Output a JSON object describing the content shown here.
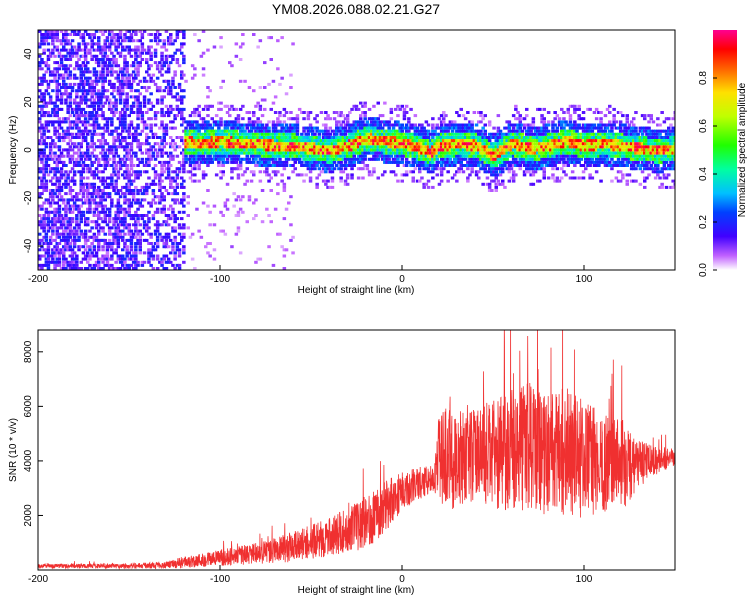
{
  "title": "YM08.2026.088.02.21.G27",
  "colors": {
    "snr_line": "#f03030",
    "track_core": "#ff3000",
    "background": "#ffffff"
  },
  "chart_data": [
    {
      "type": "heatmap",
      "name": "spectrogram",
      "xlabel": "Height of straight line (km)",
      "ylabel": "Frequency (Hz)",
      "xlim": [
        -200,
        150
      ],
      "ylim": [
        -50,
        50
      ],
      "xticks": [
        -200,
        -100,
        0,
        100
      ],
      "yticks": [
        -40,
        -20,
        0,
        20,
        40
      ],
      "track_center_hz": [
        [
          -125,
          3
        ],
        [
          -110,
          2
        ],
        [
          -100,
          3
        ],
        [
          -90,
          2
        ],
        [
          -80,
          2
        ],
        [
          -70,
          1
        ],
        [
          -60,
          1
        ],
        [
          -50,
          0
        ],
        [
          -40,
          -1
        ],
        [
          -30,
          1
        ],
        [
          -20,
          4
        ],
        [
          -10,
          3
        ],
        [
          0,
          2
        ],
        [
          10,
          0
        ],
        [
          15,
          -2
        ],
        [
          20,
          1
        ],
        [
          30,
          2
        ],
        [
          40,
          1
        ],
        [
          50,
          -3
        ],
        [
          60,
          2
        ],
        [
          70,
          0
        ],
        [
          80,
          1
        ],
        [
          90,
          3
        ],
        [
          100,
          1
        ],
        [
          110,
          2
        ],
        [
          120,
          1
        ],
        [
          130,
          0
        ],
        [
          140,
          -1
        ],
        [
          150,
          0
        ]
      ],
      "colorbar": {
        "label": "Normalized spectral amplitude",
        "range": [
          0,
          1
        ],
        "ticks": [
          0.0,
          0.2,
          0.4,
          0.6,
          0.8
        ],
        "tick_labels": [
          "0.0",
          "0.2",
          "0.4",
          "0.6",
          "0.8"
        ]
      }
    },
    {
      "type": "line",
      "name": "snr",
      "xlabel": "Height of straight line (km)",
      "ylabel": "SNR (10 * v/v)",
      "xlim": [
        -200,
        150
      ],
      "ylim": [
        0,
        8800
      ],
      "xticks": [
        -200,
        -100,
        0,
        100
      ],
      "yticks": [
        2000,
        4000,
        6000,
        8000
      ],
      "envelope_x": [
        -200,
        -150,
        -130,
        -120,
        -100,
        -80,
        -60,
        -40,
        -25,
        -15,
        -5,
        0,
        10,
        18,
        20,
        22,
        30,
        40,
        50,
        60,
        70,
        80,
        90,
        100,
        110,
        120,
        125,
        130,
        140,
        150
      ],
      "envelope_mean": [
        150,
        150,
        180,
        280,
        450,
        600,
        850,
        1200,
        1600,
        2000,
        2600,
        2900,
        3200,
        3400,
        3900,
        4200,
        4000,
        4300,
        4200,
        4400,
        4500,
        4300,
        4400,
        4100,
        3900,
        4000,
        3700,
        3900,
        4000,
        4200
      ],
      "envelope_amp": [
        80,
        100,
        120,
        220,
        300,
        400,
        550,
        700,
        900,
        1000,
        900,
        700,
        600,
        500,
        1600,
        1800,
        1900,
        1700,
        2000,
        2200,
        2400,
        2300,
        2400,
        2200,
        1800,
        1700,
        1400,
        900,
        500,
        350
      ]
    }
  ]
}
